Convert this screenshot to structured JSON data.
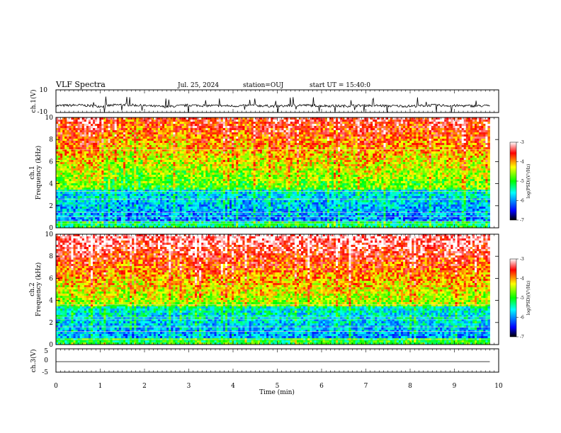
{
  "header": {
    "title": "VLF Spectra",
    "date": "Jul. 25, 2024",
    "station": "station=OUJ",
    "start": "start UT = 15:40:0"
  },
  "colors": {
    "trace": "#000000",
    "colormap": [
      "#000000",
      "#0000ff",
      "#00ffff",
      "#00ff00",
      "#ffff00",
      "#ff0000",
      "#ffffff"
    ]
  },
  "chart_data": [
    {
      "type": "line",
      "panel": "ch1-waveform",
      "ylabel": "ch.1(V)",
      "ylim": [
        -10,
        10
      ],
      "y_ticks": [
        "10",
        "-10"
      ],
      "x": [
        0,
        0.5,
        1,
        1.5,
        2,
        2.5,
        3,
        3.5,
        4,
        4.5,
        5,
        5.5,
        6,
        6.5,
        7,
        7.5,
        8,
        8.5,
        9,
        9.5,
        9.8
      ],
      "y": [
        -4,
        -3.5,
        -4.5,
        -3,
        -4,
        -5,
        -3.5,
        -4,
        -4.2,
        -3.8,
        -4.5,
        -3.5,
        -4,
        -4.3,
        -3.7,
        -4.1,
        -4.4,
        -3.6,
        -4,
        -4.2,
        -4
      ]
    },
    {
      "type": "heatmap",
      "panel": "ch1-spectrogram",
      "ylabel": "Frequency (kHz)",
      "channel_label": "ch.1",
      "ylim": [
        0,
        10
      ],
      "y_ticks": [
        "0",
        "2",
        "4",
        "6",
        "8",
        "10"
      ],
      "colorbar": {
        "label": "log(PSD)(V²/Hz)",
        "range": [
          -7,
          -3
        ],
        "ticks": [
          "-3",
          "-4",
          "-5",
          "-6",
          "-7"
        ]
      },
      "time_profile": [
        0.6,
        0.7,
        0.5,
        0.45,
        0.55,
        0.5,
        0.6,
        0.55,
        0.5,
        0.6,
        0.65,
        0.6,
        0.55,
        0.6,
        0.65,
        0.6,
        0.55,
        0.6,
        0.65,
        0.6
      ]
    },
    {
      "type": "heatmap",
      "panel": "ch2-spectrogram",
      "ylabel": "Frequency (kHz)",
      "channel_label": "ch.2",
      "ylim": [
        0,
        10
      ],
      "y_ticks": [
        "0",
        "2",
        "4",
        "6",
        "8",
        "10"
      ],
      "colorbar": {
        "label": "log(PSD)(V²/Hz)",
        "range": [
          -7,
          -3
        ],
        "ticks": [
          "-3",
          "-4",
          "-5",
          "-6",
          "-7"
        ]
      },
      "time_profile": [
        0.7,
        0.75,
        0.7,
        0.65,
        0.7,
        0.7,
        0.75,
        0.7,
        0.7,
        0.75,
        0.7,
        0.72,
        0.7,
        0.75,
        0.72,
        0.7,
        0.73,
        0.7,
        0.75,
        0.7
      ]
    },
    {
      "type": "line",
      "panel": "ch3-waveform",
      "ylabel": "ch.3(V)",
      "ylim": [
        -5,
        5
      ],
      "y_ticks": [
        "5",
        "0",
        "-5"
      ],
      "x": [
        0,
        9.8
      ],
      "y": [
        -0.5,
        -0.5
      ]
    }
  ],
  "x_axis": {
    "label": "Time (min)",
    "xlim": [
      0,
      10
    ],
    "ticks": [
      "0",
      "1",
      "2",
      "3",
      "4",
      "5",
      "6",
      "7",
      "8",
      "9",
      "10"
    ]
  }
}
